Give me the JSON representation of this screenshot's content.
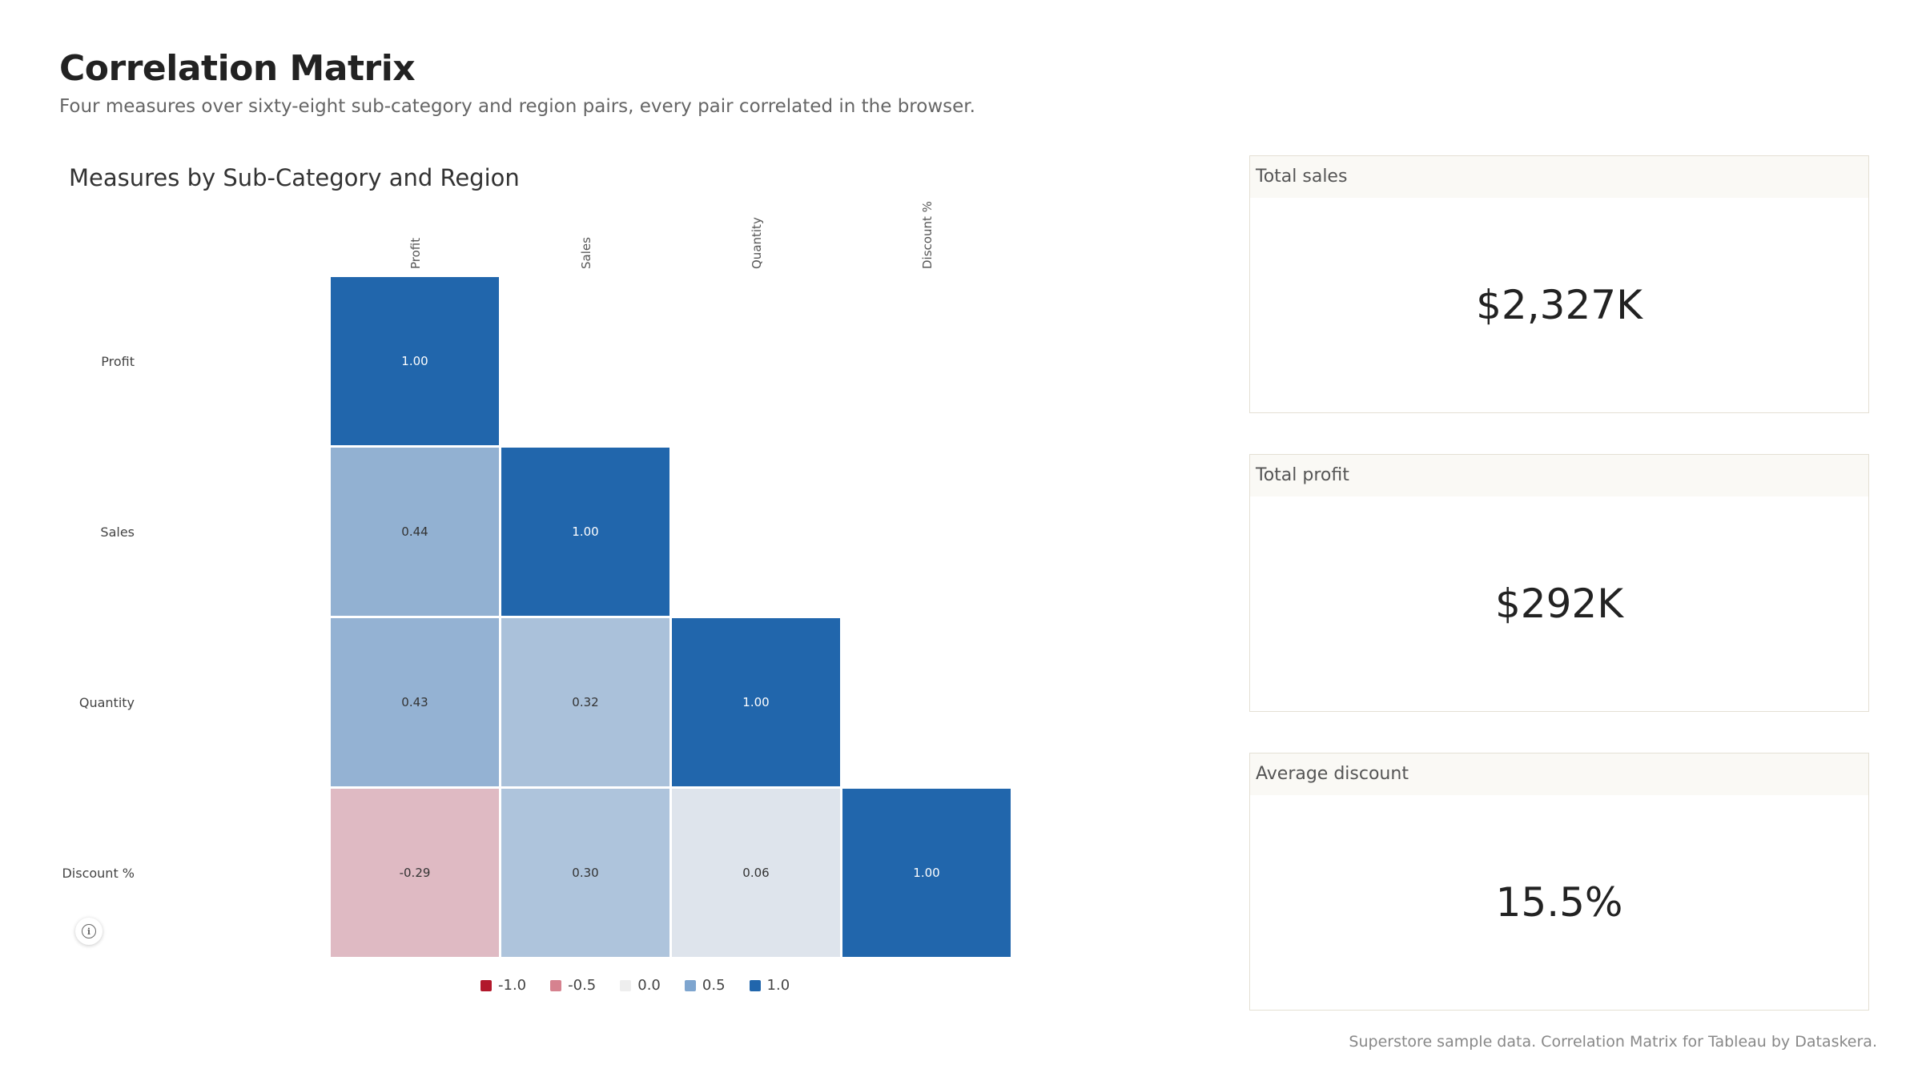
{
  "header": {
    "title": "Correlation Matrix",
    "subtitle": "Four measures over sixty-eight sub-category and region pairs, every pair correlated in the browser."
  },
  "chart_title": "Measures by Sub-Category and Region",
  "chart_data": {
    "type": "heatmap",
    "title": "Measures by Sub-Category and Region",
    "measures": [
      "Profit",
      "Sales",
      "Quantity",
      "Discount %"
    ],
    "matrix": [
      [
        1.0,
        null,
        null,
        null
      ],
      [
        0.44,
        1.0,
        null,
        null
      ],
      [
        0.43,
        0.32,
        1.0,
        null
      ],
      [
        -0.29,
        0.3,
        0.06,
        1.0
      ]
    ],
    "color_range": [
      -1.0,
      1.0
    ],
    "legend": [
      "-1.0",
      "-0.5",
      "0.0",
      "0.5",
      "1.0"
    ],
    "legend_colors": [
      "#b2182b",
      "#d6828f",
      "#eeeeee",
      "#7ea5cf",
      "#2166ac"
    ],
    "legend_position": "bottom"
  },
  "kpis": [
    {
      "label": "Total sales",
      "value": "$2,327K"
    },
    {
      "label": "Total profit",
      "value": "$292K"
    },
    {
      "label": "Average discount",
      "value": "15.5%"
    }
  ],
  "footer": "Superstore sample data. Correlation Matrix for Tableau by Dataskera.",
  "icons": {
    "info": "info-icon"
  },
  "colors": {
    "negative": "#b2182b",
    "neutral": "#eeeeee",
    "positive": "#2166ac"
  }
}
